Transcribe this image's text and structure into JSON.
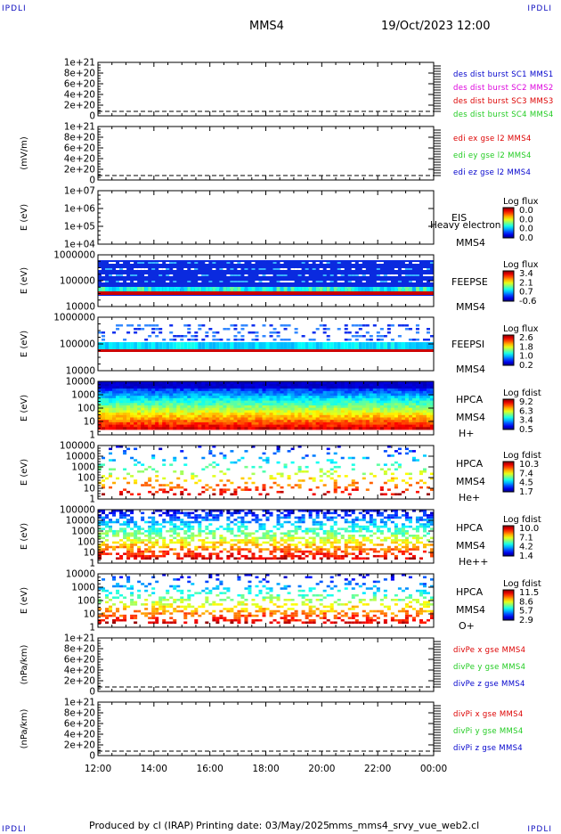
{
  "corners": {
    "tl": "IPDLI",
    "tr": "IPDLI",
    "bl": "IPDLI",
    "br": "IPDLI"
  },
  "header": {
    "spacecraft": "MMS4",
    "datetime": "19/Oct/2023 12:00"
  },
  "footer": {
    "produced_by": "Produced by cl (IRAP)",
    "printing_date": "Printing date: 03/May/2025",
    "filename": "mms_mms4_srvy_vue_web2.cl"
  },
  "colors": {
    "red": "#dd0000",
    "green": "#22cc22",
    "blue": "#0000cc",
    "magenta": "#dd00dd"
  },
  "chart_data": [
    {
      "type": "line",
      "ylabel": "",
      "yticks": [
        "1e+21",
        "8e+20",
        "6e+20",
        "4e+20",
        "2e+20",
        "0"
      ],
      "series": [
        {
          "name": "des dist burst SC1 MMS1",
          "color": "#0000cc"
        },
        {
          "name": "des dist burst SC2 MMS2",
          "color": "#dd00dd"
        },
        {
          "name": "des dist burst SC3 MMS3",
          "color": "#dd0000"
        },
        {
          "name": "des dist burst SC4 MMS4",
          "color": "#22cc22"
        }
      ]
    },
    {
      "type": "line",
      "ylabel": "(mV/m)",
      "yticks": [
        "1e+21",
        "8e+20",
        "6e+20",
        "4e+20",
        "2e+20",
        "0"
      ],
      "series": [
        {
          "name": "edi ex gse l2 MMS4",
          "color": "#dd0000"
        },
        {
          "name": "edi ey gse l2 MMS4",
          "color": "#22cc22"
        },
        {
          "name": "edi ez gse l2 MMS4",
          "color": "#0000cc"
        }
      ]
    },
    {
      "type": "heatmap",
      "ylabel": "E (eV)",
      "yticks": [
        "1e+07",
        "1e+06",
        "1e+05",
        "1e+04"
      ],
      "right_labels": [
        "EIS",
        "MMS4"
      ],
      "overlay_text": "Heavy electron td",
      "colorbar": {
        "label": "Log flux",
        "ticks": [
          "0.0",
          "0.0",
          "0.0",
          "0.0"
        ]
      }
    },
    {
      "type": "heatmap",
      "ylabel": "E (eV)",
      "yticks": [
        "1000000",
        "100000",
        "10000"
      ],
      "right_labels": [
        "FEEPSE",
        "MMS4"
      ],
      "colorbar": {
        "label": "Log flux",
        "ticks": [
          "3.4",
          "2.1",
          "0.7",
          "-0.6"
        ]
      }
    },
    {
      "type": "heatmap",
      "ylabel": "E (eV)",
      "yticks": [
        "1000000",
        "100000",
        "10000"
      ],
      "right_labels": [
        "FEEPSI",
        "MMS4"
      ],
      "colorbar": {
        "label": "Log flux",
        "ticks": [
          "2.6",
          "1.8",
          "1.0",
          "0.2"
        ]
      }
    },
    {
      "type": "heatmap",
      "ylabel": "E (eV)",
      "yticks": [
        "10000",
        "1000",
        "100",
        "10",
        "1"
      ],
      "right_labels": [
        "HPCA",
        "MMS4",
        "H+"
      ],
      "colorbar": {
        "label": "Log fdist",
        "ticks": [
          "9.2",
          "6.3",
          "3.4",
          "0.5"
        ]
      }
    },
    {
      "type": "heatmap",
      "ylabel": "E (eV)",
      "yticks": [
        "100000",
        "10000",
        "1000",
        "100",
        "10",
        "1"
      ],
      "right_labels": [
        "HPCA",
        "MMS4",
        "He+"
      ],
      "colorbar": {
        "label": "Log fdist",
        "ticks": [
          "10.3",
          "7.4",
          "4.5",
          "1.7"
        ]
      }
    },
    {
      "type": "heatmap",
      "ylabel": "E (eV)",
      "yticks": [
        "100000",
        "10000",
        "1000",
        "100",
        "10",
        "1"
      ],
      "right_labels": [
        "HPCA",
        "MMS4",
        "He++"
      ],
      "colorbar": {
        "label": "Log fdist",
        "ticks": [
          "10.0",
          "7.1",
          "4.2",
          "1.4"
        ]
      }
    },
    {
      "type": "heatmap",
      "ylabel": "E (eV)",
      "yticks": [
        "10000",
        "1000",
        "100",
        "10",
        "1"
      ],
      "right_labels": [
        "HPCA",
        "MMS4",
        "O+"
      ],
      "colorbar": {
        "label": "Log fdist",
        "ticks": [
          "11.5",
          "8.6",
          "5.7",
          "2.9"
        ]
      }
    },
    {
      "type": "line",
      "ylabel": "(nPa/km)",
      "yticks": [
        "1e+21",
        "8e+20",
        "6e+20",
        "4e+20",
        "2e+20",
        "0"
      ],
      "series": [
        {
          "name": "divPe x gse MMS4",
          "color": "#dd0000"
        },
        {
          "name": "divPe y gse MMS4",
          "color": "#22cc22"
        },
        {
          "name": "divPe z gse MMS4",
          "color": "#0000cc"
        }
      ]
    },
    {
      "type": "line",
      "ylabel": "(nPa/km)",
      "yticks": [
        "1e+21",
        "8e+20",
        "6e+20",
        "4e+20",
        "2e+20",
        "0"
      ],
      "series": [
        {
          "name": "divPi x gse MMS4",
          "color": "#dd0000"
        },
        {
          "name": "divPi y gse MMS4",
          "color": "#22cc22"
        },
        {
          "name": "divPi z gse MMS4",
          "color": "#0000cc"
        }
      ]
    }
  ],
  "xaxis": {
    "ticks": [
      "12:00",
      "14:00",
      "16:00",
      "18:00",
      "20:00",
      "22:00",
      "00:00"
    ]
  }
}
